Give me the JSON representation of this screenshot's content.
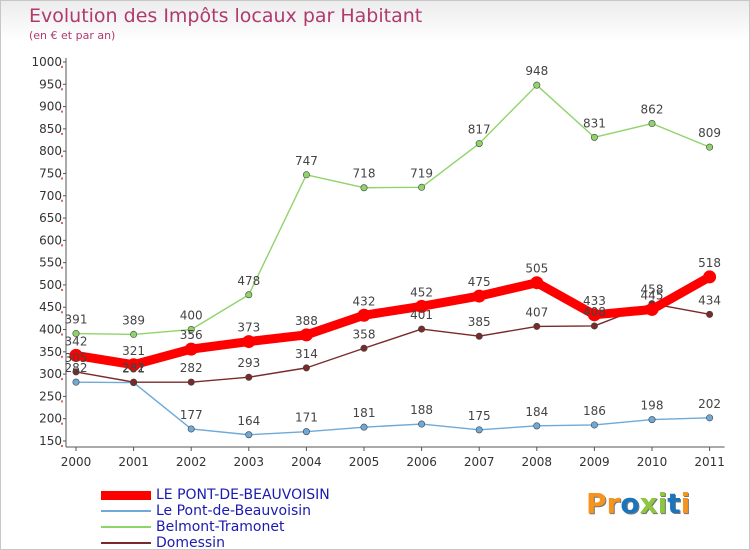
{
  "header": {
    "title": "Evolution des Impôts locaux par Habitant",
    "subtitle": "(en € et par an)"
  },
  "chart_data": {
    "type": "line",
    "title": "Evolution des Impôts locaux par Habitant",
    "subtitle": "(en € et par an)",
    "xlabel": "",
    "ylabel": "",
    "categories": [
      "2000",
      "2001",
      "2002",
      "2003",
      "2004",
      "2005",
      "2006",
      "2007",
      "2008",
      "2009",
      "2010",
      "2011"
    ],
    "ylim": [
      150,
      1000
    ],
    "yticks": [
      150,
      200,
      250,
      300,
      350,
      400,
      450,
      500,
      550,
      600,
      650,
      700,
      750,
      800,
      850,
      900,
      950,
      1000
    ],
    "grid": false,
    "legend_position": "bottom-left",
    "series": [
      {
        "name": "LE PONT-DE-BEAUVOISIN",
        "color": "#ff0000",
        "values": [
          342,
          321,
          356,
          373,
          388,
          432,
          452,
          475,
          505,
          433,
          445,
          518
        ]
      },
      {
        "name": "Le Pont-de-Beauvoisin",
        "color": "#6ea9d8",
        "values": [
          282,
          281,
          177,
          164,
          171,
          181,
          188,
          175,
          184,
          186,
          198,
          202
        ]
      },
      {
        "name": "Belmont-Tramonet",
        "color": "#8fd46a",
        "values": [
          391,
          389,
          400,
          478,
          747,
          718,
          719,
          817,
          948,
          831,
          862,
          809
        ]
      },
      {
        "name": "Domessin",
        "color": "#7a2a2a",
        "values": [
          305,
          282,
          282,
          293,
          314,
          358,
          401,
          385,
          407,
          408,
          458,
          434
        ]
      }
    ]
  },
  "logo": {
    "letters": [
      "P",
      "r",
      "o",
      "x",
      "i",
      "t",
      "i"
    ],
    "colors": [
      "#f7941d",
      "#f7941d",
      "#1b75bc",
      "#8dc63f",
      "#8dc63f",
      "#1b75bc",
      "#f7941d"
    ]
  }
}
